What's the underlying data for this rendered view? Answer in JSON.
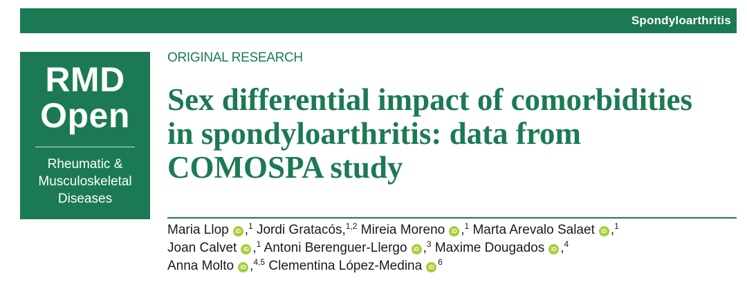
{
  "header": {
    "section_label": "Spondyloarthritis"
  },
  "logo": {
    "line1": "RMD",
    "line2": "Open",
    "sub1": "Rheumatic &",
    "sub2": "Musculoskeletal",
    "sub3": "Diseases"
  },
  "article": {
    "kicker": "ORIGINAL RESEARCH",
    "title_lines": [
      "Sex differential impact of comorbidities",
      "in spondyloarthritis: data from",
      "COMOSPA study"
    ]
  },
  "authors": [
    {
      "name": "Maria Llop",
      "affil": "1",
      "orcid": true,
      "sep": ","
    },
    {
      "name": "Jordi Gratacós,",
      "affil": "1,2",
      "orcid": false,
      "sep": ""
    },
    {
      "name": "Mireia Moreno",
      "affil": "1",
      "orcid": true,
      "sep": ","
    },
    {
      "name": "Marta Arevalo Salaet",
      "affil": "1",
      "orcid": true,
      "sep": ","
    },
    {
      "name": "Joan Calvet",
      "affil": "1",
      "orcid": true,
      "sep": ","
    },
    {
      "name": "Antoni Berenguer-Llergo",
      "affil": "3",
      "orcid": true,
      "sep": ","
    },
    {
      "name": "Maxime Dougados",
      "affil": "4",
      "orcid": true,
      "sep": ","
    },
    {
      "name": "Anna Molto",
      "affil": "4,5",
      "orcid": true,
      "sep": ","
    },
    {
      "name": "Clementina López-Medina",
      "affil": "6",
      "orcid": true,
      "sep": ""
    }
  ],
  "icons": {
    "orcid": "orcid-icon"
  },
  "colors": {
    "brand_green": "#1b7a53",
    "orcid_green": "#a6ce39"
  }
}
